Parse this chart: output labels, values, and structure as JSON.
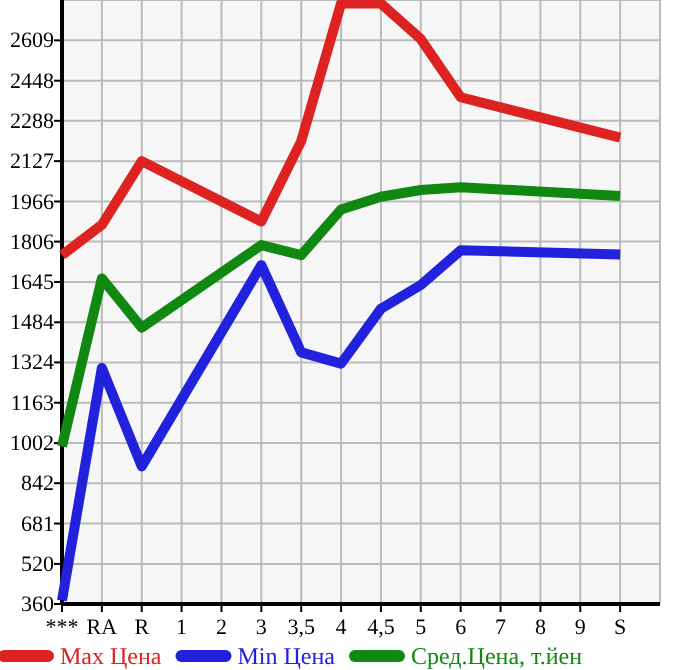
{
  "chart_data": {
    "type": "line",
    "categories": [
      "***",
      "RA",
      "R",
      "1",
      "2",
      "3",
      "3,5",
      "4",
      "4,5",
      "5",
      "6",
      "7",
      "8",
      "9",
      "S"
    ],
    "series": [
      {
        "name": "Max Цена",
        "color": "#dd2222",
        "values": [
          1752,
          1873,
          2127,
          null,
          null,
          1886,
          2207,
          2756,
          2756,
          2614,
          2382,
          null,
          null,
          null,
          2221
        ]
      },
      {
        "name": "Min Цена",
        "color": "#2222dd",
        "values": [
          374,
          1302,
          909,
          null,
          null,
          1712,
          1364,
          1319,
          1538,
          1633,
          1771,
          null,
          null,
          null,
          1755
        ]
      },
      {
        "name": "Сред.Цена, т.йен",
        "color": "#118811",
        "values": [
          989,
          1659,
          1463,
          null,
          null,
          1792,
          1752,
          1934,
          1985,
          2012,
          2023,
          null,
          null,
          null,
          1988
        ]
      }
    ],
    "ylim": [
      360,
      2770
    ],
    "yticks": [
      360,
      520,
      681,
      842,
      1002,
      1163,
      1324,
      1484,
      1645,
      1806,
      1966,
      2127,
      2288,
      2448,
      2609
    ],
    "grid": true,
    "legend": "bottom",
    "marker": "none",
    "line_style": "solid"
  }
}
